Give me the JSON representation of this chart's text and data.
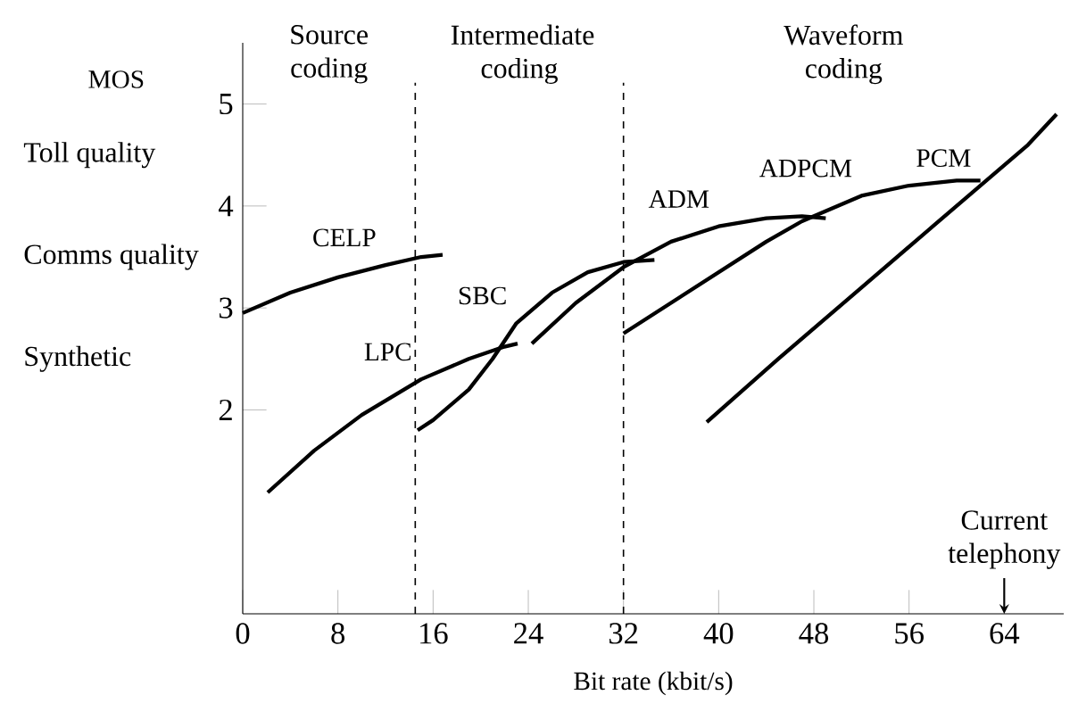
{
  "chart_data": {
    "type": "line",
    "xlabel": "Bit rate (kbit/s)",
    "ylabel": "MOS",
    "xlim": [
      0,
      69
    ],
    "ylim": [
      0,
      5.6
    ],
    "xticks": [
      0,
      8,
      16,
      24,
      32,
      40,
      48,
      56,
      64
    ],
    "yticks": [
      2,
      3,
      4,
      5
    ],
    "grid": false,
    "marker": "none",
    "line_style": "solid",
    "series": [
      {
        "name": "CELP",
        "color": "#000000",
        "x": [
          0,
          4,
          8,
          12,
          15,
          16.8
        ],
        "values": [
          2.95,
          3.15,
          3.3,
          3.42,
          3.5,
          3.52
        ]
      },
      {
        "name": "LPC",
        "color": "#000000",
        "x": [
          2.1,
          6,
          10,
          15,
          19,
          22,
          23.1
        ],
        "values": [
          1.19,
          1.6,
          1.95,
          2.3,
          2.5,
          2.62,
          2.65
        ]
      },
      {
        "name": "SBC",
        "color": "#000000",
        "x": [
          14.7,
          16,
          19,
          21,
          23,
          26,
          29,
          32,
          34.6
        ],
        "values": [
          1.8,
          1.9,
          2.2,
          2.5,
          2.85,
          3.15,
          3.35,
          3.45,
          3.47
        ]
      },
      {
        "name": "ADM",
        "color": "#000000",
        "x": [
          24.3,
          28,
          32,
          36,
          40,
          44,
          47,
          49
        ],
        "values": [
          2.65,
          3.05,
          3.4,
          3.65,
          3.8,
          3.88,
          3.9,
          3.88
        ]
      },
      {
        "name": "ADPCM",
        "color": "#000000",
        "x": [
          32,
          36,
          40,
          44,
          47,
          52,
          56,
          60,
          62
        ],
        "values": [
          2.75,
          3.05,
          3.35,
          3.65,
          3.85,
          4.1,
          4.2,
          4.25,
          4.25
        ]
      },
      {
        "name": "PCM",
        "color": "#000000",
        "x": [
          39,
          45,
          52,
          58,
          62,
          66,
          68.4
        ],
        "values": [
          1.88,
          2.5,
          3.2,
          3.8,
          4.2,
          4.6,
          4.9
        ]
      }
    ],
    "ref_lines": [
      {
        "axis": "x",
        "value": 14.5,
        "line_style": "dashed"
      },
      {
        "axis": "x",
        "value": 32,
        "line_style": "dashed"
      }
    ],
    "annotations": [
      "Source coding",
      "Intermediate coding",
      "Waveform coding",
      "Current telephony",
      "Toll quality",
      "Comms quality",
      "Synthetic"
    ]
  }
}
